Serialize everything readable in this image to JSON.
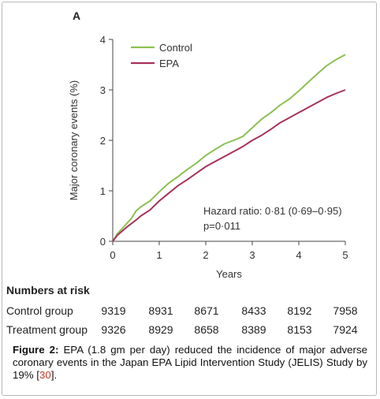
{
  "panel_label": "A",
  "chart_data": {
    "type": "line",
    "xlabel": "Years",
    "ylabel": "Major coronary events (%)",
    "xlim": [
      0,
      5
    ],
    "ylim": [
      0,
      4
    ],
    "xticks": [
      "0",
      "1",
      "2",
      "3",
      "4",
      "5"
    ],
    "yticks": [
      "0",
      "1",
      "2",
      "3",
      "4"
    ],
    "legend_position": "top-left",
    "series": [
      {
        "name": "Control",
        "color": "#8cc152",
        "x": [
          0,
          0.1,
          0.2,
          0.3,
          0.4,
          0.5,
          0.6,
          0.8,
          1.0,
          1.2,
          1.4,
          1.6,
          1.8,
          2.0,
          2.2,
          2.4,
          2.6,
          2.8,
          3.0,
          3.2,
          3.4,
          3.6,
          3.8,
          4.0,
          4.2,
          4.4,
          4.6,
          4.8,
          5.0
        ],
        "y": [
          0,
          0.15,
          0.25,
          0.35,
          0.45,
          0.6,
          0.68,
          0.8,
          0.98,
          1.15,
          1.28,
          1.42,
          1.55,
          1.7,
          1.82,
          1.93,
          2.0,
          2.08,
          2.25,
          2.42,
          2.55,
          2.7,
          2.82,
          2.98,
          3.15,
          3.32,
          3.48,
          3.6,
          3.7
        ]
      },
      {
        "name": "EPA",
        "color": "#a8315a",
        "x": [
          0,
          0.1,
          0.2,
          0.3,
          0.4,
          0.5,
          0.6,
          0.8,
          1.0,
          1.2,
          1.4,
          1.6,
          1.8,
          2.0,
          2.2,
          2.4,
          2.6,
          2.8,
          3.0,
          3.2,
          3.4,
          3.6,
          3.8,
          4.0,
          4.2,
          4.4,
          4.6,
          4.8,
          5.0
        ],
        "y": [
          0,
          0.12,
          0.2,
          0.28,
          0.35,
          0.42,
          0.5,
          0.62,
          0.8,
          0.95,
          1.1,
          1.22,
          1.35,
          1.48,
          1.58,
          1.68,
          1.78,
          1.88,
          2.0,
          2.1,
          2.22,
          2.35,
          2.45,
          2.55,
          2.65,
          2.75,
          2.85,
          2.93,
          3.0
        ]
      }
    ],
    "annotations": [
      "Hazard ratio: 0·81 (0·69–0·95)",
      "p=0·011"
    ]
  },
  "risk_table": {
    "title": "Numbers at risk",
    "rows": [
      {
        "label": "Control group",
        "values": [
          "9319",
          "8931",
          "8671",
          "8433",
          "8192",
          "7958"
        ]
      },
      {
        "label": "Treatment group",
        "values": [
          "9326",
          "8929",
          "8658",
          "8389",
          "8153",
          "7924"
        ]
      }
    ]
  },
  "caption": {
    "bold": "Figure 2:",
    "text": " EPA (1.8 gm per day) reduced the incidence of major adverse coronary events in the Japan EPA Lipid Intervention Study (JELIS) Study by 19% [",
    "ref": "30",
    "end": "]."
  }
}
